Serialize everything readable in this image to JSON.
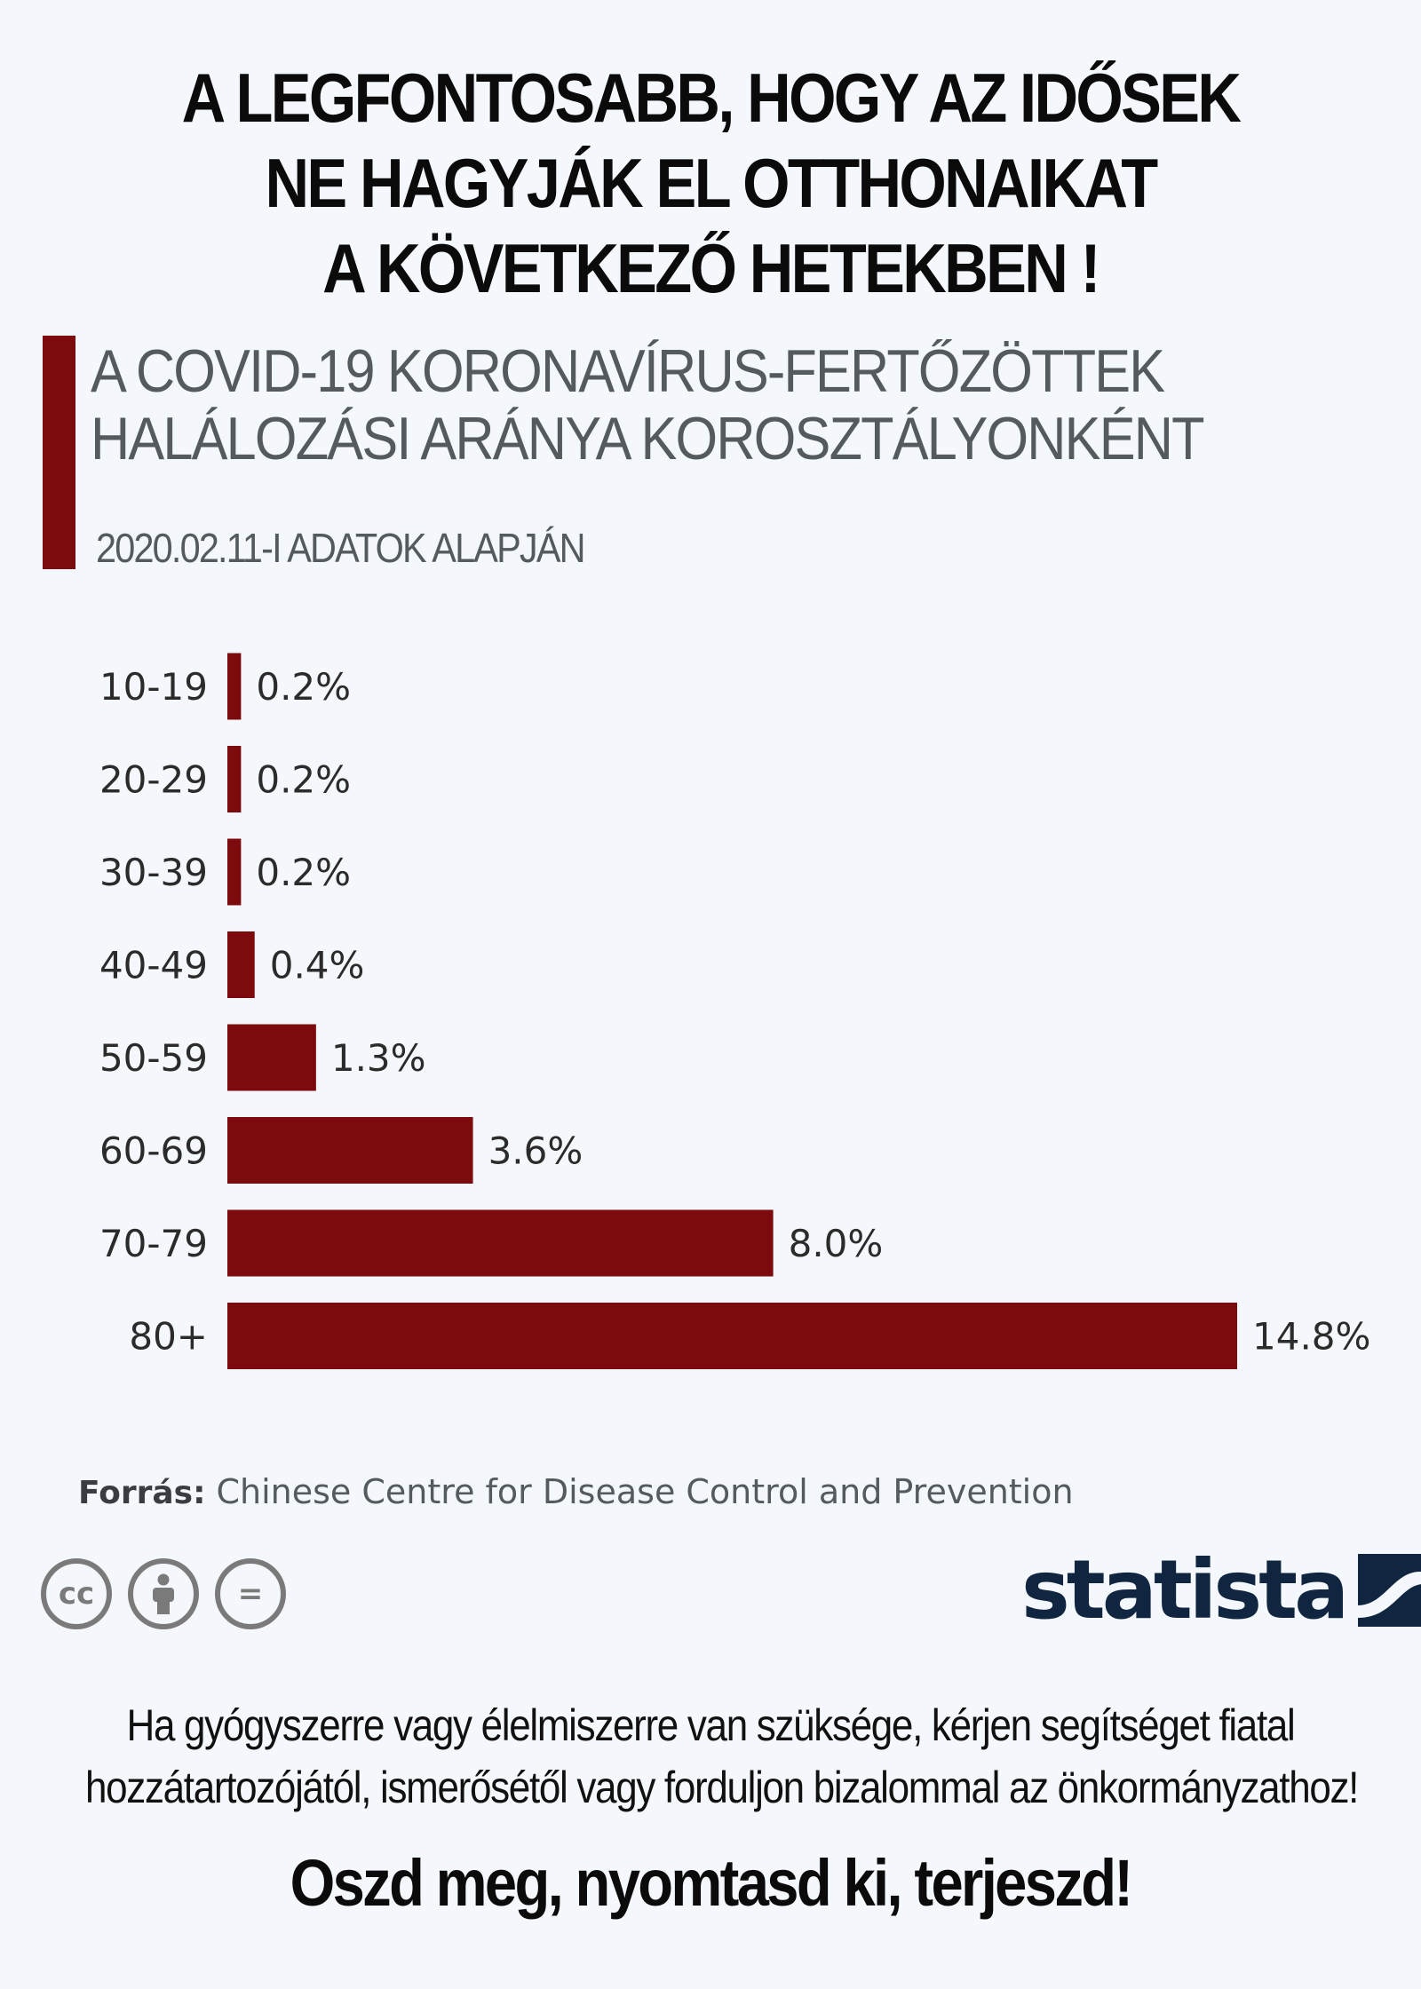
{
  "headline": {
    "lines": [
      "A LEGFONTOSABB, HOGY AZ IDŐSEK",
      "NE HAGYJÁK EL OTTHONAIKAT",
      "A KÖVETKEZŐ HETEKBEN !"
    ]
  },
  "chart_data": {
    "type": "bar",
    "orientation": "horizontal",
    "title_lines": [
      "A COVID-19 KORONAVÍRUS-FERTŐZÖTTEK",
      "HALÁLOZÁSI ARÁNYA KOROSZTÁLYONKÉNT"
    ],
    "subtitle": "2020.02.11-I ADATOK ALAPJÁN",
    "categories": [
      "10-19",
      "20-29",
      "30-39",
      "40-49",
      "50-59",
      "60-69",
      "70-79",
      "80+"
    ],
    "values": [
      0.2,
      0.2,
      0.2,
      0.4,
      1.3,
      3.6,
      8.0,
      14.8
    ],
    "value_labels": [
      "0.2%",
      "0.2%",
      "0.2%",
      "0.4%",
      "1.3%",
      "3.6%",
      "8.0%",
      "14.8%"
    ],
    "xlim": [
      0,
      14.8
    ],
    "grid": false,
    "bar_color": "#7d0b0e"
  },
  "source": {
    "label": "Forrás:",
    "text": "Chinese Centre for Disease Control and Prevention"
  },
  "license_icons": [
    "cc-icon",
    "by-person-icon",
    "nd-equals-icon"
  ],
  "license_glyphs": [
    "cc",
    "",
    "="
  ],
  "brand": {
    "name": "statista",
    "color": "#0f2540"
  },
  "note": {
    "lines": [
      "Ha gyógyszerre vagy  élelmiszerre van szüksége, kérjen segítséget fiatal",
      "hozzátartozójától, ismerősétől vagy forduljon bizalommal az önkormányzathoz!"
    ]
  },
  "cta": "Oszd meg, nyomtasd ki, terjeszd!"
}
